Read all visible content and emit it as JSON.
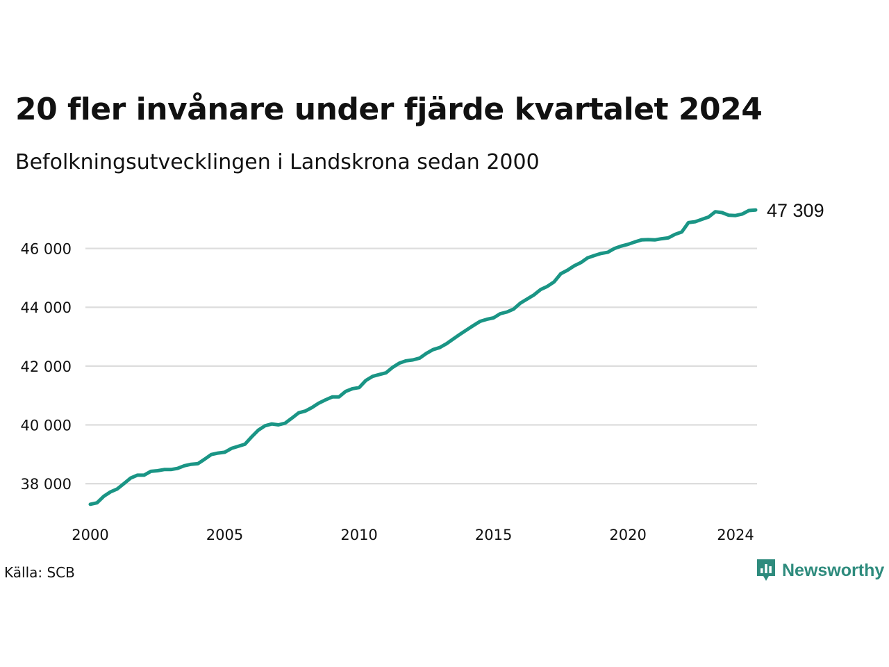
{
  "header": {
    "title": "20 fler invånare under fjärde kvartalet 2024",
    "subtitle": "Befolkningsutvecklingen i Landskrona sedan 2000"
  },
  "footer": {
    "source": "Källa: SCB",
    "brand": "Newsworthy",
    "brand_icon": "newsworthy-logo-icon"
  },
  "colors": {
    "line": "#1a9585",
    "grid": "#dddddd",
    "brand": "#2e8b7d"
  },
  "chart_data": {
    "type": "line",
    "title": "20 fler invånare under fjärde kvartalet 2024",
    "subtitle": "Befolkningsutvecklingen i Landskrona sedan 2000",
    "xlabel": "",
    "ylabel": "",
    "x_ticks": [
      2000,
      2005,
      2010,
      2015,
      2020,
      2024
    ],
    "y_ticks": [
      38000,
      40000,
      42000,
      44000,
      46000
    ],
    "y_tick_labels": [
      "38 000",
      "40 000",
      "42 000",
      "44 000",
      "46 000"
    ],
    "x_tick_labels": [
      "2000",
      "2005",
      "2010",
      "2015",
      "2020",
      "2024"
    ],
    "xlim": [
      2000,
      2024.75
    ],
    "ylim": [
      37200,
      47550
    ],
    "grid": "horizontal",
    "end_label": "47 309",
    "series": [
      {
        "x": [
          2000,
          2000.25,
          2000.5,
          2000.75,
          2001,
          2001.25,
          2001.5,
          2001.75,
          2002,
          2002.25,
          2002.5,
          2002.75,
          2003,
          2003.25,
          2003.5,
          2003.75,
          2004,
          2004.25,
          2004.5,
          2004.75,
          2005,
          2005.25,
          2005.5,
          2005.75,
          2006,
          2006.25,
          2006.5,
          2006.75,
          2007,
          2007.25,
          2007.5,
          2007.75,
          2008,
          2008.25,
          2008.5,
          2008.75,
          2009,
          2009.25,
          2009.5,
          2009.75,
          2010,
          2010.25,
          2010.5,
          2010.75,
          2011,
          2011.25,
          2011.5,
          2011.75,
          2012,
          2012.25,
          2012.5,
          2012.75,
          2013,
          2013.25,
          2013.5,
          2013.75,
          2014,
          2014.25,
          2014.5,
          2014.75,
          2015,
          2015.25,
          2015.5,
          2015.75,
          2016,
          2016.25,
          2016.5,
          2016.75,
          2017,
          2017.25,
          2017.5,
          2017.75,
          2018,
          2018.25,
          2018.5,
          2018.75,
          2019,
          2019.25,
          2019.5,
          2019.75,
          2020,
          2020.25,
          2020.5,
          2020.75,
          2021,
          2021.25,
          2021.5,
          2021.75,
          2022,
          2022.25,
          2022.5,
          2022.75,
          2023,
          2023.25,
          2023.5,
          2023.75,
          2024,
          2024.25,
          2024.5,
          2024.75
        ],
        "values": [
          37300,
          37350,
          37570,
          37720,
          37820,
          38000,
          38190,
          38290,
          38290,
          38420,
          38440,
          38480,
          38480,
          38520,
          38610,
          38660,
          38680,
          38830,
          38990,
          39040,
          39070,
          39200,
          39270,
          39340,
          39590,
          39820,
          39970,
          40030,
          40000,
          40060,
          40230,
          40410,
          40470,
          40590,
          40740,
          40850,
          40950,
          40950,
          41140,
          41230,
          41270,
          41510,
          41650,
          41710,
          41770,
          41960,
          42100,
          42180,
          42210,
          42270,
          42430,
          42560,
          42630,
          42760,
          42920,
          43080,
          43230,
          43380,
          43520,
          43590,
          43640,
          43780,
          43840,
          43940,
          44140,
          44280,
          44420,
          44600,
          44710,
          44860,
          45140,
          45260,
          45410,
          45520,
          45680,
          45760,
          45830,
          45870,
          46000,
          46080,
          46140,
          46220,
          46290,
          46300,
          46290,
          46330,
          46360,
          46480,
          46560,
          46880,
          46910,
          46990,
          47070,
          47250,
          47220,
          47130,
          47120,
          47170,
          47290,
          47309
        ]
      }
    ]
  }
}
